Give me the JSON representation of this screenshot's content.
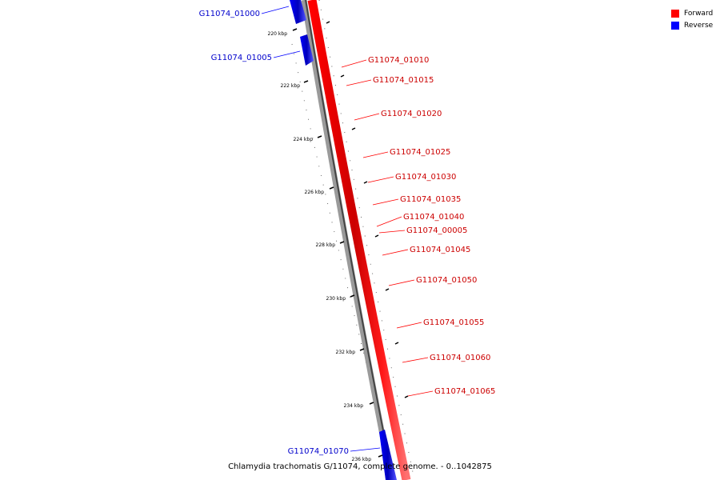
{
  "caption": "Chlamydia trachomatis G/11074, complete genome. - 0..1042875",
  "legend": [
    {
      "label": "Forward",
      "color": "#ff0000"
    },
    {
      "label": "Reverse",
      "color": "#0000ff"
    }
  ],
  "ticks": [
    "220 kbp",
    "222 kbp",
    "224 kbp",
    "226 kbp",
    "228 kbp",
    "230 kbp",
    "232 kbp",
    "234 kbp",
    "236 kbp"
  ],
  "genes": [
    {
      "label": "G11074_01000",
      "strand": "reverse"
    },
    {
      "label": "G11074_01005",
      "strand": "reverse"
    },
    {
      "label": "G11074_01010",
      "strand": "forward"
    },
    {
      "label": "G11074_01015",
      "strand": "forward"
    },
    {
      "label": "G11074_01020",
      "strand": "forward"
    },
    {
      "label": "G11074_01025",
      "strand": "forward"
    },
    {
      "label": "G11074_01030",
      "strand": "forward"
    },
    {
      "label": "G11074_01035",
      "strand": "forward"
    },
    {
      "label": "G11074_01040",
      "strand": "forward"
    },
    {
      "label": "G11074_00005",
      "strand": "forward"
    },
    {
      "label": "G11074_01045",
      "strand": "forward"
    },
    {
      "label": "G11074_01050",
      "strand": "forward"
    },
    {
      "label": "G11074_01055",
      "strand": "forward"
    },
    {
      "label": "G11074_01060",
      "strand": "forward"
    },
    {
      "label": "G11074_01065",
      "strand": "forward"
    },
    {
      "label": "G11074_01070",
      "strand": "reverse"
    }
  ]
}
